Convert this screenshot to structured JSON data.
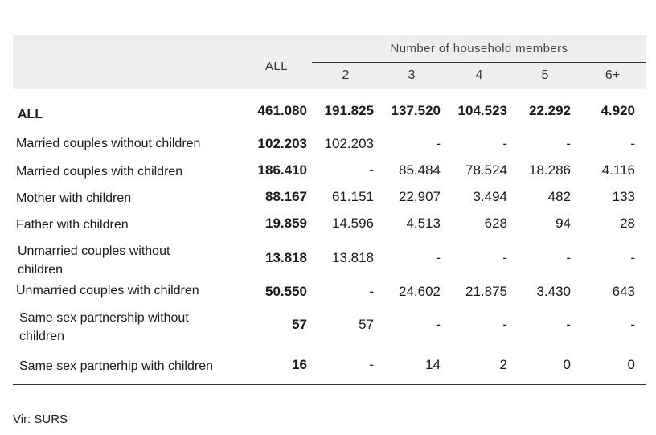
{
  "table": {
    "all_header": "ALL",
    "group_header": "Number of household members",
    "sub_headers": [
      "2",
      "3",
      "4",
      "5",
      "6+"
    ],
    "rows": [
      {
        "label": "ALL",
        "total": "461.080",
        "values": [
          "191.825",
          "137.520",
          "104.523",
          "22.292",
          "4.920"
        ]
      },
      {
        "label": "Married couples without children",
        "total": "102.203",
        "values": [
          "102.203",
          "-",
          "-",
          "-",
          "-"
        ]
      },
      {
        "label": "Married couples with children",
        "total": "186.410",
        "values": [
          "-",
          "85.484",
          "78.524",
          "18.286",
          "4.116"
        ]
      },
      {
        "label": "Mother with children",
        "total": "88.167",
        "values": [
          "61.151",
          "22.907",
          "3.494",
          "482",
          "133"
        ]
      },
      {
        "label": "Father with children",
        "total": "19.859",
        "values": [
          "14.596",
          "4.513",
          "628",
          "94",
          "28"
        ]
      },
      {
        "label": "Unmarried couples without children",
        "total": "13.818",
        "values": [
          "13.818",
          "-",
          "-",
          "-",
          "-"
        ]
      },
      {
        "label": "Unmarried couples with children",
        "total": "50.550",
        "values": [
          "-",
          "24.602",
          "21.875",
          "3.430",
          "643"
        ]
      },
      {
        "label": "Same sex partnership without children",
        "total": "57",
        "values": [
          "57",
          "-",
          "-",
          "-",
          "-"
        ]
      },
      {
        "label": "Same sex partnerhip with children",
        "total": "16",
        "values": [
          "-",
          "14",
          "2",
          "0",
          "0"
        ]
      }
    ]
  },
  "source": "Vir: SURS"
}
